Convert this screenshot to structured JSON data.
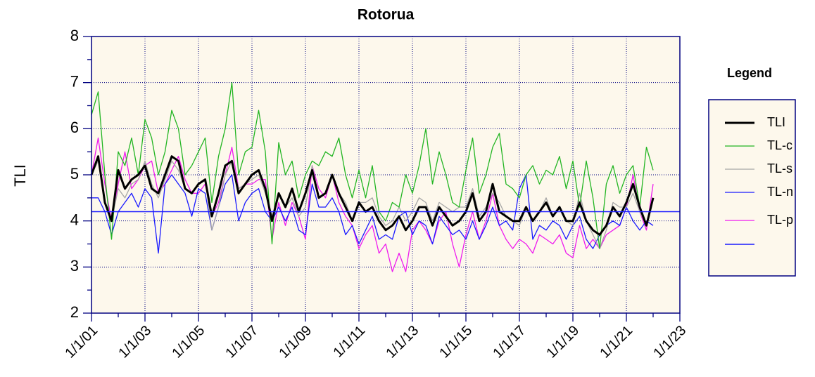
{
  "chart_data": {
    "type": "line",
    "title": "Rotorua",
    "ylabel": "TLI",
    "legend_title": "Legend",
    "x": [
      2001,
      2001.25,
      2001.5,
      2001.75,
      2002,
      2002.25,
      2002.5,
      2002.75,
      2003,
      2003.25,
      2003.5,
      2003.75,
      2004,
      2004.25,
      2004.5,
      2004.75,
      2005,
      2005.25,
      2005.5,
      2005.75,
      2006,
      2006.25,
      2006.5,
      2006.75,
      2007,
      2007.25,
      2007.5,
      2007.75,
      2008,
      2008.25,
      2008.5,
      2008.75,
      2009,
      2009.25,
      2009.5,
      2009.75,
      2010,
      2010.25,
      2010.5,
      2010.75,
      2011,
      2011.25,
      2011.5,
      2011.75,
      2012,
      2012.25,
      2012.5,
      2012.75,
      2013,
      2013.25,
      2013.5,
      2013.75,
      2014,
      2014.25,
      2014.5,
      2014.75,
      2015,
      2015.25,
      2015.5,
      2015.75,
      2016,
      2016.25,
      2016.5,
      2016.75,
      2017,
      2017.25,
      2017.5,
      2017.75,
      2018,
      2018.25,
      2018.5,
      2018.75,
      2019,
      2019.25,
      2019.5,
      2019.75,
      2020,
      2020.25,
      2020.5,
      2020.75,
      2021,
      2021.25,
      2021.5,
      2021.75,
      2022
    ],
    "series": [
      {
        "name": "TLI",
        "color": "#000000",
        "width": 3,
        "values": [
          5.0,
          5.4,
          4.4,
          4.0,
          5.1,
          4.7,
          4.9,
          5.0,
          5.2,
          4.7,
          4.6,
          5.0,
          5.4,
          5.3,
          4.7,
          4.6,
          4.8,
          4.9,
          4.1,
          4.6,
          5.2,
          5.3,
          4.6,
          4.8,
          5.0,
          5.1,
          4.7,
          4.0,
          4.6,
          4.3,
          4.7,
          4.2,
          4.6,
          5.1,
          4.5,
          4.6,
          5.0,
          4.6,
          4.3,
          4.0,
          4.4,
          4.2,
          4.3,
          4.0,
          3.8,
          3.9,
          4.1,
          3.8,
          4.0,
          4.3,
          4.3,
          3.9,
          4.3,
          4.1,
          3.9,
          4.0,
          4.2,
          4.6,
          4.0,
          4.2,
          4.8,
          4.2,
          4.1,
          4.0,
          4.0,
          4.3,
          4.0,
          4.2,
          4.4,
          4.1,
          4.3,
          4.0,
          4.0,
          4.4,
          4.0,
          3.8,
          3.7,
          3.9,
          4.3,
          4.1,
          4.4,
          4.8,
          4.3,
          3.9,
          4.5
        ]
      },
      {
        "name": "TL-c",
        "color": "#22b522",
        "width": 1.3,
        "values": [
          6.3,
          6.8,
          5.0,
          3.6,
          5.5,
          5.2,
          5.8,
          5.0,
          6.2,
          5.8,
          5.0,
          5.5,
          6.4,
          6.0,
          5.0,
          5.2,
          5.5,
          5.8,
          4.4,
          5.4,
          6.0,
          7.0,
          5.0,
          5.5,
          5.6,
          6.4,
          5.5,
          3.5,
          5.7,
          5.0,
          5.3,
          4.5,
          5.0,
          5.3,
          5.2,
          5.5,
          5.4,
          5.8,
          5.0,
          4.5,
          5.1,
          4.5,
          5.2,
          4.2,
          4.0,
          4.4,
          4.3,
          5.0,
          4.6,
          5.2,
          6.0,
          4.8,
          5.5,
          5.0,
          4.4,
          4.3,
          5.1,
          5.8,
          4.6,
          5.0,
          5.6,
          5.9,
          4.8,
          4.7,
          4.5,
          5.0,
          5.2,
          4.8,
          5.1,
          5.0,
          5.4,
          4.7,
          5.3,
          4.3,
          5.3,
          4.5,
          3.4,
          4.8,
          5.2,
          4.6,
          5.0,
          5.2,
          4.3,
          5.6,
          5.1
        ]
      },
      {
        "name": "TL-s",
        "color": "#a6a6a6",
        "width": 1.3,
        "values": [
          5.0,
          5.3,
          4.4,
          4.0,
          4.7,
          4.5,
          4.8,
          4.9,
          5.3,
          4.8,
          4.5,
          4.9,
          5.3,
          5.1,
          4.7,
          4.6,
          4.8,
          4.9,
          3.8,
          4.3,
          5.0,
          5.3,
          4.7,
          4.8,
          4.9,
          5.0,
          4.6,
          4.1,
          4.6,
          4.3,
          4.5,
          4.1,
          4.3,
          5.2,
          4.5,
          4.6,
          5.0,
          4.6,
          4.4,
          4.0,
          4.4,
          4.4,
          4.5,
          4.1,
          3.9,
          4.0,
          4.3,
          4.0,
          4.2,
          4.5,
          4.4,
          4.0,
          4.4,
          4.3,
          4.2,
          4.3,
          4.3,
          4.7,
          4.1,
          4.3,
          4.6,
          4.4,
          4.1,
          4.0,
          3.9,
          4.3,
          4.0,
          4.2,
          4.5,
          4.1,
          4.3,
          4.0,
          3.9,
          4.6,
          4.0,
          3.7,
          3.4,
          3.8,
          4.4,
          4.3,
          4.3,
          4.6,
          4.2,
          3.9,
          4.5
        ]
      },
      {
        "name": "TL-n",
        "color": "#1a1aff",
        "width": 1.3,
        "values": [
          4.5,
          4.5,
          4.2,
          3.7,
          4.2,
          4.4,
          4.6,
          4.3,
          4.7,
          4.5,
          3.3,
          4.8,
          5.0,
          4.8,
          4.6,
          4.1,
          4.7,
          4.6,
          3.8,
          4.3,
          4.8,
          5.0,
          4.0,
          4.4,
          4.6,
          4.7,
          4.2,
          4.0,
          4.3,
          4.0,
          4.3,
          3.8,
          3.7,
          4.8,
          4.3,
          4.3,
          4.5,
          4.2,
          3.7,
          3.9,
          3.5,
          3.8,
          4.1,
          3.6,
          3.7,
          3.6,
          4.1,
          4.2,
          3.7,
          4.0,
          3.9,
          3.5,
          4.1,
          3.9,
          3.7,
          3.8,
          3.6,
          4.0,
          3.6,
          3.9,
          4.3,
          3.9,
          4.0,
          3.8,
          4.7,
          5.0,
          3.6,
          3.9,
          3.8,
          4.0,
          3.9,
          3.6,
          3.9,
          4.1,
          3.6,
          3.4,
          3.7,
          3.9,
          4.0,
          3.9,
          4.3,
          4.0,
          3.8,
          4.0,
          3.9
        ]
      },
      {
        "name": "TL-p",
        "color": "#ee1aee",
        "width": 1.3,
        "values": [
          5.0,
          5.8,
          4.8,
          4.0,
          4.8,
          5.5,
          4.7,
          4.9,
          5.2,
          5.3,
          4.6,
          4.8,
          5.1,
          5.4,
          4.9,
          4.6,
          4.6,
          4.8,
          4.1,
          4.4,
          5.0,
          5.6,
          4.7,
          4.8,
          4.8,
          4.9,
          4.9,
          3.6,
          4.4,
          3.9,
          4.4,
          4.1,
          3.6,
          5.2,
          4.7,
          4.5,
          5.0,
          4.4,
          4.1,
          3.9,
          3.4,
          3.7,
          3.9,
          3.3,
          3.5,
          2.9,
          3.3,
          2.9,
          3.8,
          4.0,
          3.8,
          3.5,
          4.0,
          4.2,
          3.5,
          3.0,
          3.7,
          4.2,
          3.6,
          4.0,
          4.6,
          3.9,
          3.6,
          3.4,
          3.6,
          3.5,
          3.3,
          3.7,
          3.6,
          3.5,
          3.7,
          3.3,
          3.2,
          3.9,
          3.4,
          3.6,
          3.4,
          3.7,
          3.8,
          3.9,
          4.3,
          5.0,
          4.2,
          3.8,
          4.8
        ]
      }
    ],
    "hline": {
      "value": 4.2,
      "color": "#1a1aff"
    },
    "xlim": [
      2001,
      2023
    ],
    "xticks": [
      {
        "value": 2001,
        "label": "1/1/01"
      },
      {
        "value": 2003,
        "label": "1/1/03"
      },
      {
        "value": 2005,
        "label": "1/1/05"
      },
      {
        "value": 2007,
        "label": "1/1/07"
      },
      {
        "value": 2009,
        "label": "1/1/09"
      },
      {
        "value": 2011,
        "label": "1/1/11"
      },
      {
        "value": 2013,
        "label": "1/1/13"
      },
      {
        "value": 2015,
        "label": "1/1/15"
      },
      {
        "value": 2017,
        "label": "1/1/17"
      },
      {
        "value": 2019,
        "label": "1/1/19"
      },
      {
        "value": 2021,
        "label": "1/1/21"
      },
      {
        "value": 2023,
        "label": "1/1/23"
      }
    ],
    "ylim": [
      2,
      8
    ],
    "yticks": [
      2,
      3,
      4,
      5,
      6,
      7,
      8
    ],
    "grid": true
  }
}
